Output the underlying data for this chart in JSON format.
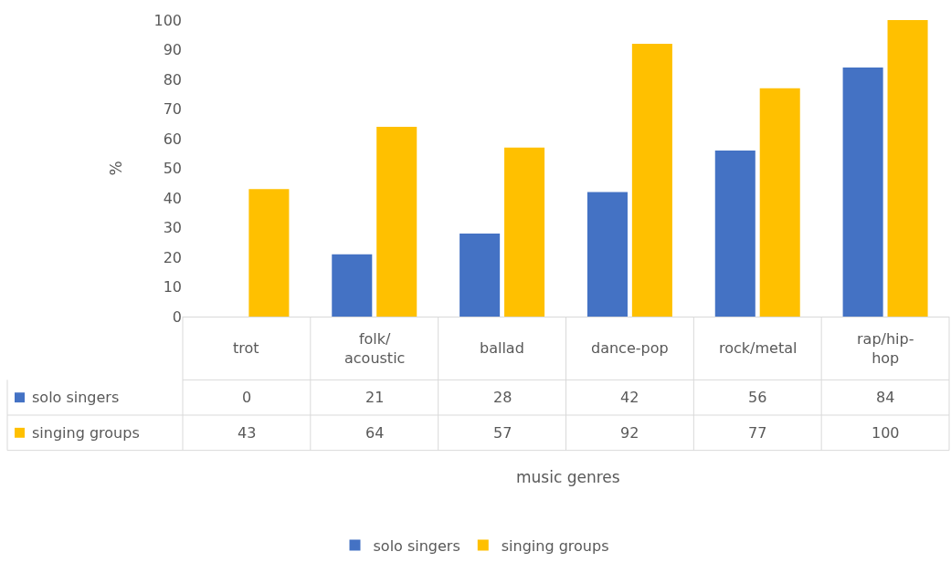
{
  "chart_data": {
    "type": "bar",
    "annotations": [
      "music genres"
    ],
    "ylabel": "%",
    "categories": [
      "trot",
      "folk/acoustic",
      "ballad",
      "dance-pop",
      "rock/metal",
      "rap/hip-hop"
    ],
    "series": [
      {
        "name": "solo singers",
        "color": "#4472c4",
        "values": [
          0,
          21,
          28,
          42,
          56,
          84
        ]
      },
      {
        "name": "singing groups",
        "color": "#ffc000",
        "values": [
          43,
          64,
          57,
          92,
          77,
          100
        ]
      }
    ],
    "ylim": [
      0,
      100
    ],
    "yticks": [
      0,
      10,
      20,
      30,
      40,
      50,
      60,
      70,
      80,
      90,
      100
    ],
    "grid": false,
    "legend": "bottom",
    "data_labels": true
  }
}
